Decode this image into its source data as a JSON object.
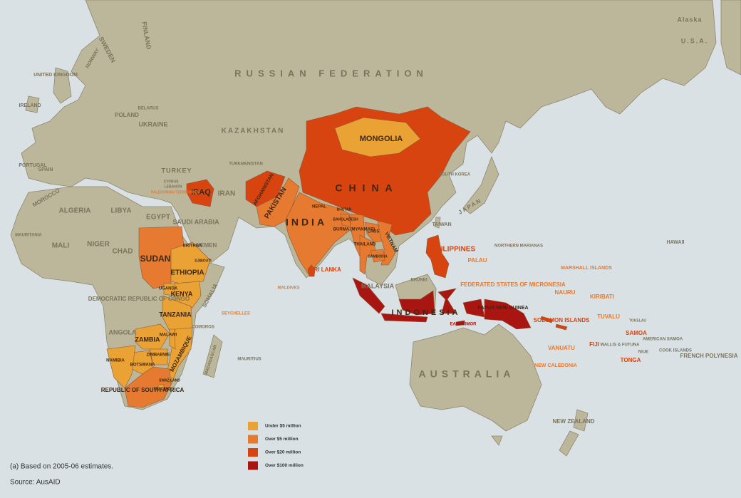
{
  "places": [
    {
      "name": "RUSSIAN FEDERATION"
    },
    {
      "name": "CHINA",
      "level": 2
    },
    {
      "name": "MONGOLIA",
      "level": 0
    },
    {
      "name": "KAZAKHSTAN"
    },
    {
      "name": "INDIA",
      "level": 1
    },
    {
      "name": "PAKISTAN",
      "level": 1
    },
    {
      "name": "AFGHANISTAN",
      "level": 2
    },
    {
      "name": "IRAN"
    },
    {
      "name": "IRAQ",
      "level": 2
    },
    {
      "name": "TURKEY"
    },
    {
      "name": "SAUDI ARABIA"
    },
    {
      "name": "EGYPT"
    },
    {
      "name": "LIBYA"
    },
    {
      "name": "ALGERIA"
    },
    {
      "name": "MALI"
    },
    {
      "name": "NIGER"
    },
    {
      "name": "CHAD"
    },
    {
      "name": "SUDAN",
      "level": 1
    },
    {
      "name": "ETHIOPIA",
      "level": 0
    },
    {
      "name": "KENYA",
      "level": 0
    },
    {
      "name": "TANZANIA",
      "level": 0
    },
    {
      "name": "ZAMBIA",
      "level": 0
    },
    {
      "name": "MOZAMBIQUE",
      "level": 0
    },
    {
      "name": "ZIMBABWE",
      "level": 0
    },
    {
      "name": "BOTSWANA",
      "level": 0
    },
    {
      "name": "NAMIBIA",
      "level": 0
    },
    {
      "name": "REPUBLIC OF SOUTH AFRICA",
      "level": 1
    },
    {
      "name": "MALAWI",
      "level": 0
    },
    {
      "name": "UGANDA",
      "level": 0
    },
    {
      "name": "DEMOCRATIC REPUBLIC OF CONGO"
    },
    {
      "name": "ANGOLA"
    },
    {
      "name": "SWAZILAND",
      "level": 0
    },
    {
      "name": "LESOTHO",
      "level": 0
    },
    {
      "name": "COMOROS"
    },
    {
      "name": "MADAGASCAR"
    },
    {
      "name": "MAURITIUS"
    },
    {
      "name": "SEYCHELLES",
      "level": 1
    },
    {
      "name": "MALDIVES",
      "level": 1
    },
    {
      "name": "SRI LANKA",
      "level": 2
    },
    {
      "name": "NEPAL"
    },
    {
      "name": "BHUTAN"
    },
    {
      "name": "BANGLADESH",
      "level": 1
    },
    {
      "name": "BURMA (MYANMAR)",
      "level": 1
    },
    {
      "name": "LAOS",
      "level": 1
    },
    {
      "name": "THAILAND",
      "level": 1
    },
    {
      "name": "VIETNAM",
      "level": 1
    },
    {
      "name": "CAMBODIA",
      "level": 1
    },
    {
      "name": "PHILIPPINES",
      "level": 2
    },
    {
      "name": "PALAU",
      "level": 1
    },
    {
      "name": "TAIWAN"
    },
    {
      "name": "JAPAN"
    },
    {
      "name": "SOUTH KOREA"
    },
    {
      "name": "MALAYSIA"
    },
    {
      "name": "BRUNEI"
    },
    {
      "name": "INDONESIA",
      "level": 3
    },
    {
      "name": "EAST TIMOR",
      "level": 3
    },
    {
      "name": "PAPUA NEW GUINEA",
      "level": 3
    },
    {
      "name": "SOLOMON ISLANDS",
      "level": 2
    },
    {
      "name": "VANUATU",
      "level": 1
    },
    {
      "name": "NEW CALEDONIA",
      "level": 1
    },
    {
      "name": "FIJI",
      "level": 2
    },
    {
      "name": "TONGA",
      "level": 2
    },
    {
      "name": "SAMOA",
      "level": 2
    },
    {
      "name": "AMERICAN SAMOA"
    },
    {
      "name": "WALLIS & FUTUNA"
    },
    {
      "name": "NIUE"
    },
    {
      "name": "COOK ISLANDS"
    },
    {
      "name": "FRENCH POLYNESIA"
    },
    {
      "name": "TOKELAU"
    },
    {
      "name": "TUVALU",
      "level": 1
    },
    {
      "name": "KIRIBATI",
      "level": 1
    },
    {
      "name": "NAURU",
      "level": 1
    },
    {
      "name": "MARSHALL ISLANDS",
      "level": 1
    },
    {
      "name": "FEDERATED STATES OF MICRONESIA",
      "level": 1
    },
    {
      "name": "NORTHERN MARIANAS"
    },
    {
      "name": "HAWAII"
    },
    {
      "name": "NEW ZEALAND"
    },
    {
      "name": "AUSTRALIA"
    },
    {
      "name": "Alaska"
    },
    {
      "name": "U.S.A."
    },
    {
      "name": "UNITED KINGDOM"
    },
    {
      "name": "IRELAND"
    },
    {
      "name": "PORTUGAL"
    },
    {
      "name": "SPAIN"
    },
    {
      "name": "POLAND"
    },
    {
      "name": "UKRAINE"
    },
    {
      "name": "BELARUS"
    },
    {
      "name": "SWEDEN"
    },
    {
      "name": "FINLAND"
    },
    {
      "name": "NORWAY"
    },
    {
      "name": "CYPRUS"
    },
    {
      "name": "LEBANON"
    },
    {
      "name": "PALESTINIAN TERRITORIES",
      "level": 1
    },
    {
      "name": "YEMEN"
    },
    {
      "name": "SOMALIA"
    },
    {
      "name": "ERITREA"
    },
    {
      "name": "DJIBOUTI"
    },
    {
      "name": "MOROCCO"
    },
    {
      "name": "MAURITANIA"
    },
    {
      "name": "TURKMENISTAN"
    }
  ],
  "legend": [
    {
      "label": "Under $5 million",
      "color": "#e9a233"
    },
    {
      "label": "Over $5 million",
      "color": "#e57a30"
    },
    {
      "label": "Over $20 million",
      "color": "#d8440f"
    },
    {
      "label": "Over $100 million",
      "color": "#a91611"
    }
  ],
  "footnote": "(a) Based on 2005-06 estimates.",
  "source": "Source: AusAID"
}
